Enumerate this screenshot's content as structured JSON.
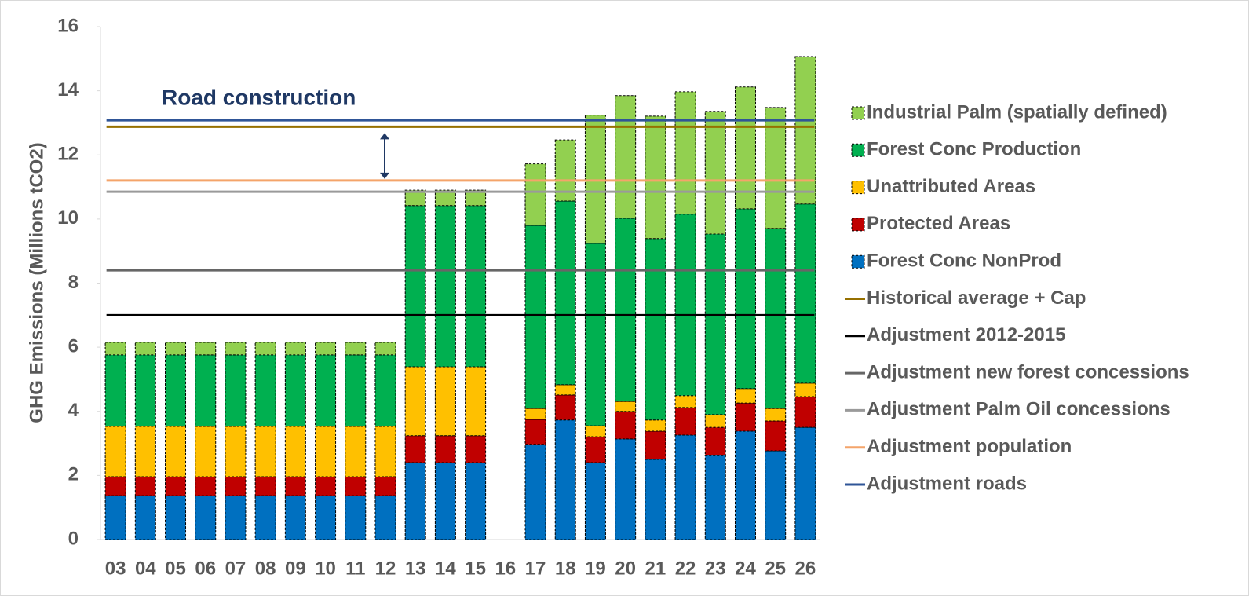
{
  "chart_data": {
    "type": "bar",
    "stacked": true,
    "y_label": "GHG Emissions (Millions tCO2)",
    "annotation": "Road construction",
    "categories": [
      "03",
      "04",
      "05",
      "06",
      "07",
      "08",
      "09",
      "10",
      "11",
      "12",
      "13",
      "14",
      "15",
      "16",
      "17",
      "18",
      "19",
      "20",
      "21",
      "22",
      "23",
      "24",
      "25",
      "26"
    ],
    "series": [
      {
        "name": "Forest Conc NonProd",
        "color": "#0070c0",
        "values": [
          1.37,
          1.37,
          1.37,
          1.37,
          1.37,
          1.37,
          1.37,
          1.37,
          1.37,
          1.37,
          2.4,
          2.4,
          2.4,
          null,
          2.97,
          3.73,
          2.4,
          3.14,
          2.5,
          3.26,
          2.62,
          3.38,
          2.77,
          3.5
        ]
      },
      {
        "name": "Protected Areas",
        "color": "#c00000",
        "values": [
          0.59,
          0.59,
          0.59,
          0.59,
          0.59,
          0.59,
          0.59,
          0.59,
          0.59,
          0.59,
          0.84,
          0.84,
          0.84,
          null,
          0.78,
          0.78,
          0.81,
          0.86,
          0.88,
          0.86,
          0.88,
          0.88,
          0.93,
          0.96
        ]
      },
      {
        "name": "Unattributed Areas",
        "color": "#ffc000",
        "values": [
          1.57,
          1.57,
          1.57,
          1.57,
          1.57,
          1.57,
          1.57,
          1.57,
          1.57,
          1.57,
          2.15,
          2.15,
          2.15,
          null,
          0.34,
          0.32,
          0.34,
          0.31,
          0.35,
          0.37,
          0.4,
          0.45,
          0.39,
          0.42
        ]
      },
      {
        "name": "Forest Conc Production",
        "color": "#00b050",
        "values": [
          2.23,
          2.23,
          2.23,
          2.23,
          2.23,
          2.23,
          2.23,
          2.23,
          2.23,
          2.23,
          5.03,
          5.03,
          5.03,
          null,
          5.71,
          5.73,
          5.69,
          5.71,
          5.66,
          5.66,
          5.63,
          5.61,
          5.62,
          5.59
        ]
      },
      {
        "name": "Industrial Palm (spatially defined)",
        "color": "#92d050",
        "values": [
          0.39,
          0.39,
          0.39,
          0.39,
          0.39,
          0.39,
          0.39,
          0.39,
          0.39,
          0.39,
          0.48,
          0.48,
          0.48,
          null,
          1.92,
          1.91,
          4.0,
          3.83,
          3.82,
          3.82,
          3.83,
          3.8,
          3.77,
          4.6
        ]
      }
    ],
    "lines": [
      {
        "name": "Historical average + Cap",
        "color": "#967000",
        "value": 12.88
      },
      {
        "name": "Adjustment 2012-2015",
        "color": "#000000",
        "value": 7.0
      },
      {
        "name": "Adjustment new forest concessions",
        "color": "#666666",
        "value": 8.4
      },
      {
        "name": "Adjustment Palm Oil concessions",
        "color": "#9a9a9a",
        "value": 10.85
      },
      {
        "name": "Adjustment population",
        "color": "#f4a46a",
        "value": 11.2
      },
      {
        "name": "Adjustment roads",
        "color": "#2f5597",
        "value": 13.08
      }
    ],
    "ylim": [
      0,
      16
    ],
    "yticks": [
      0,
      2,
      4,
      6,
      8,
      10,
      12,
      14,
      16
    ]
  }
}
